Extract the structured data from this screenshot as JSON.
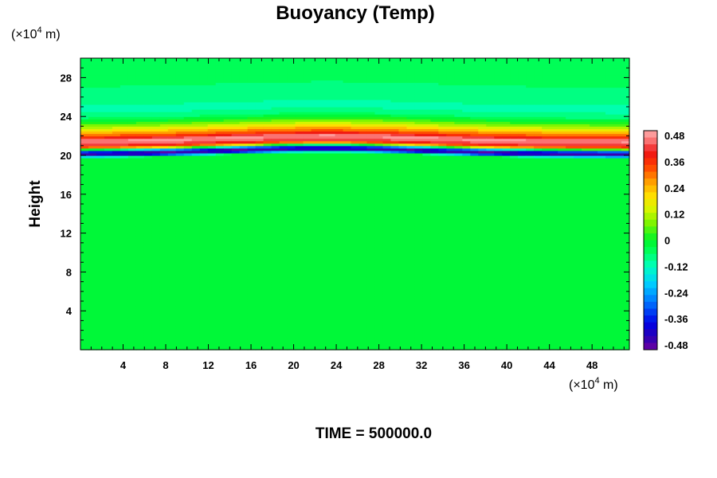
{
  "chart_data": {
    "type": "heatmap",
    "title": "Buoyancy (Temp)",
    "ylabel": "Height",
    "y_unit": {
      "prefix": "(×10",
      "exp": "4",
      "suffix": " m)"
    },
    "x_unit": {
      "prefix": "(×10",
      "exp": "4",
      "suffix": " m)"
    },
    "xlim": [
      0,
      51.5
    ],
    "ylim": [
      0,
      30
    ],
    "x_ticks": [
      "4",
      "8",
      "12",
      "16",
      "20",
      "24",
      "28",
      "32",
      "36",
      "40",
      "44",
      "48"
    ],
    "y_ticks": [
      "4",
      "8",
      "12",
      "16",
      "20",
      "24",
      "28"
    ],
    "colorbar": {
      "range": [
        -0.48,
        0.48
      ],
      "tick_labels": [
        "0.48",
        "0.36",
        "0.24",
        "0.12",
        "0",
        "-0.12",
        "-0.24",
        "-0.36",
        "-0.48"
      ],
      "levels": 32
    },
    "profile": [
      {
        "z": 0,
        "v": 0.0
      },
      {
        "z": 19.7,
        "v": 0.0
      },
      {
        "z": 20.0,
        "v": -0.4
      },
      {
        "z": 20.2,
        "v": -0.46
      },
      {
        "z": 20.45,
        "v": -0.2
      },
      {
        "z": 20.7,
        "v": 0.2
      },
      {
        "z": 20.9,
        "v": 0.36
      },
      {
        "z": 21.2,
        "v": 0.44
      },
      {
        "z": 21.5,
        "v": 0.46
      },
      {
        "z": 21.9,
        "v": 0.33
      },
      {
        "z": 22.3,
        "v": 0.24
      },
      {
        "z": 22.8,
        "v": 0.12
      },
      {
        "z": 23.3,
        "v": 0.02
      },
      {
        "z": 23.9,
        "v": -0.07
      },
      {
        "z": 24.6,
        "v": -0.1
      },
      {
        "z": 25.6,
        "v": -0.08
      },
      {
        "z": 27.0,
        "v": -0.06
      },
      {
        "z": 28.5,
        "v": -0.04
      },
      {
        "z": 30.0,
        "v": -0.03
      }
    ],
    "layer_crest": {
      "x_peak": 23,
      "peak_rise": 0.6
    }
  },
  "footer": {
    "time_label": "TIME = 500000.0"
  }
}
